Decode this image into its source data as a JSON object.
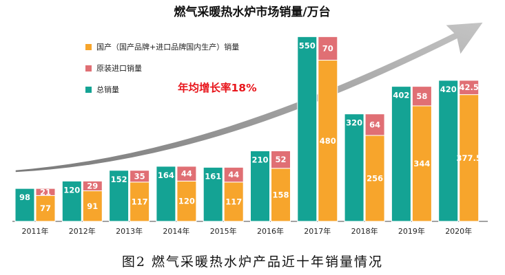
{
  "chart_data": {
    "type": "bar",
    "title": "燃气采暖热水炉市场销量/万台",
    "categories": [
      "2011年",
      "2012年",
      "2013年",
      "2014年",
      "2015年",
      "2016年",
      "2017年",
      "2018年",
      "2019年",
      "2020年"
    ],
    "series": [
      {
        "name": "国产（国产品牌+进口品牌国内生产）销量",
        "values": [
          77,
          91,
          117,
          120,
          117,
          158,
          480,
          256,
          344,
          377.5
        ],
        "color": "#f7a52c"
      },
      {
        "name": "原装进口销量",
        "values": [
          21,
          29,
          35,
          44,
          44,
          52,
          70,
          64,
          58,
          42.5
        ],
        "color": "#e06f74"
      },
      {
        "name": "总销量",
        "values": [
          98,
          120,
          152,
          164,
          161,
          210,
          550,
          320,
          402,
          420
        ],
        "color": "#14a394"
      }
    ],
    "stacked_series": [
      "国产（国产品牌+进口品牌国内生产）销量",
      "原装进口销量"
    ],
    "annotation": "年均增长率18%",
    "ylim": [
      0,
      600
    ],
    "grid": false,
    "legend_position": "top-left"
  },
  "caption": "图2  燃气采暖热水炉产品近十年销量情况"
}
